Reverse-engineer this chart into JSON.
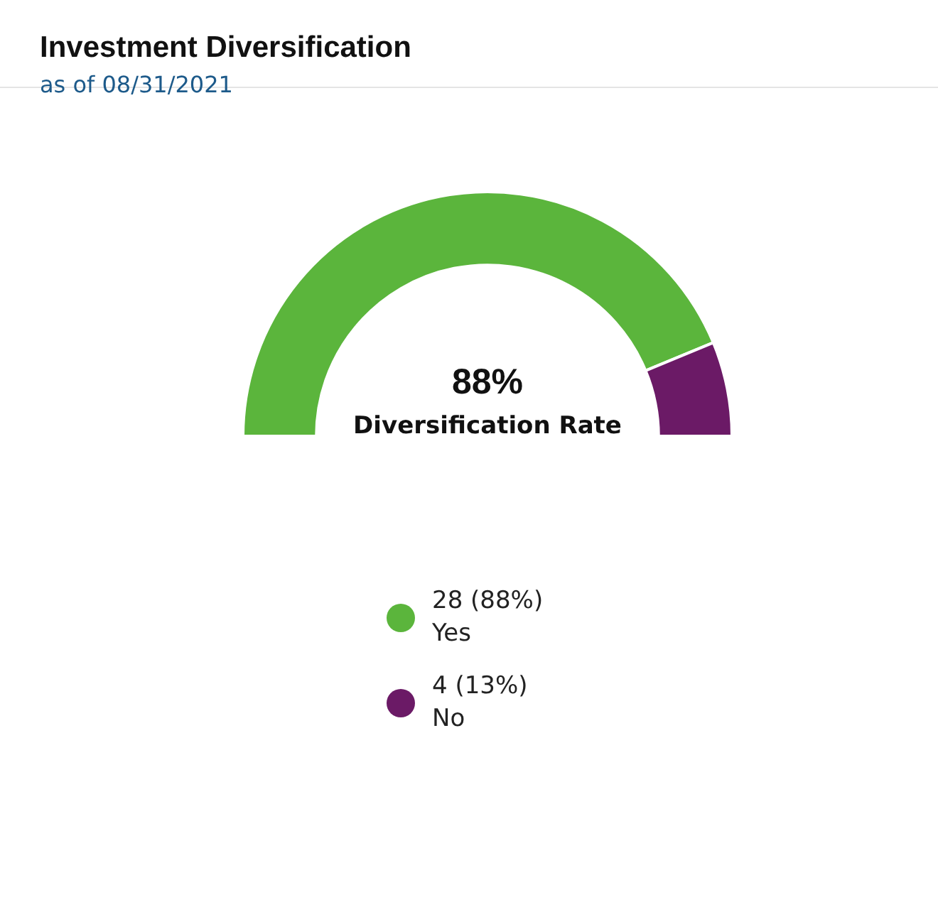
{
  "chart_data": {
    "type": "donut",
    "title": "Investment Diversification",
    "subtitle": "as of 08/31/2021",
    "categories": [
      "Yes",
      "No"
    ],
    "values": [
      28,
      4
    ],
    "colors": [
      "#5bb53c",
      "#6b1a66"
    ],
    "value_labels": [
      "28 (88%)",
      "4 (13%)"
    ],
    "legend": "bottom",
    "annotations": [
      "88%",
      "Diversification Rate"
    ]
  }
}
